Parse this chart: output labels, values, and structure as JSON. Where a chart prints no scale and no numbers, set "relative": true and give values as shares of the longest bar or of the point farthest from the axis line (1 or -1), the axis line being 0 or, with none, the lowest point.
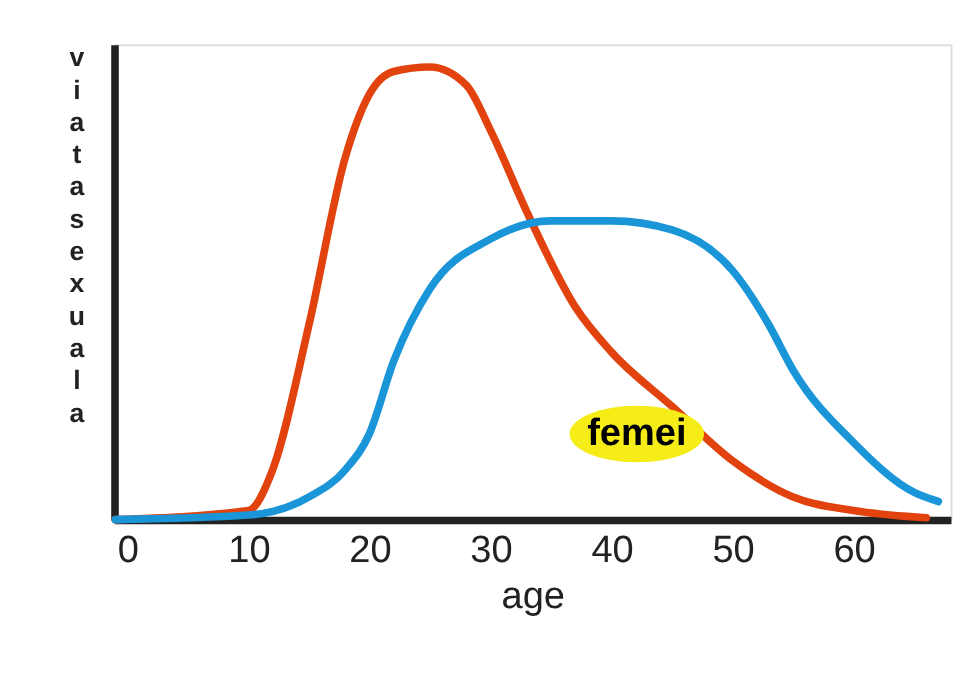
{
  "chart_data": {
    "type": "line",
    "relative": true,
    "xlabel": "age",
    "ylabel": "viata sexuala",
    "xlim": [
      -1.1,
      68
    ],
    "xticks": [
      0,
      10,
      20,
      30,
      40,
      50,
      60
    ],
    "grid": false,
    "legend": false,
    "marker": "none",
    "line_style": "solid",
    "annotations": [
      "femei"
    ],
    "series": [
      {
        "color": "#e2430e",
        "x": [
          -1,
          10,
          12,
          15,
          18,
          20,
          22,
          25,
          28,
          30,
          33,
          37,
          40,
          45,
          50,
          55,
          60,
          66
        ],
        "values": [
          0,
          0.02,
          0.11,
          0.43,
          0.8,
          0.94,
          0.99,
          1,
          0.96,
          0.86,
          0.68,
          0.47,
          0.37,
          0.25,
          0.13,
          0.05,
          0.02,
          0.004
        ]
      },
      {
        "color": "#1a96d8",
        "x": [
          -1,
          10,
          15,
          18,
          20,
          22,
          25,
          30,
          35,
          40,
          45,
          50,
          53,
          55,
          60,
          65,
          67
        ],
        "values": [
          0,
          0.01,
          0.05,
          0.11,
          0.19,
          0.35,
          0.51,
          0.62,
          0.66,
          0.66,
          0.64,
          0.55,
          0.43,
          0.33,
          0.17,
          0.06,
          0.04
        ]
      }
    ]
  }
}
